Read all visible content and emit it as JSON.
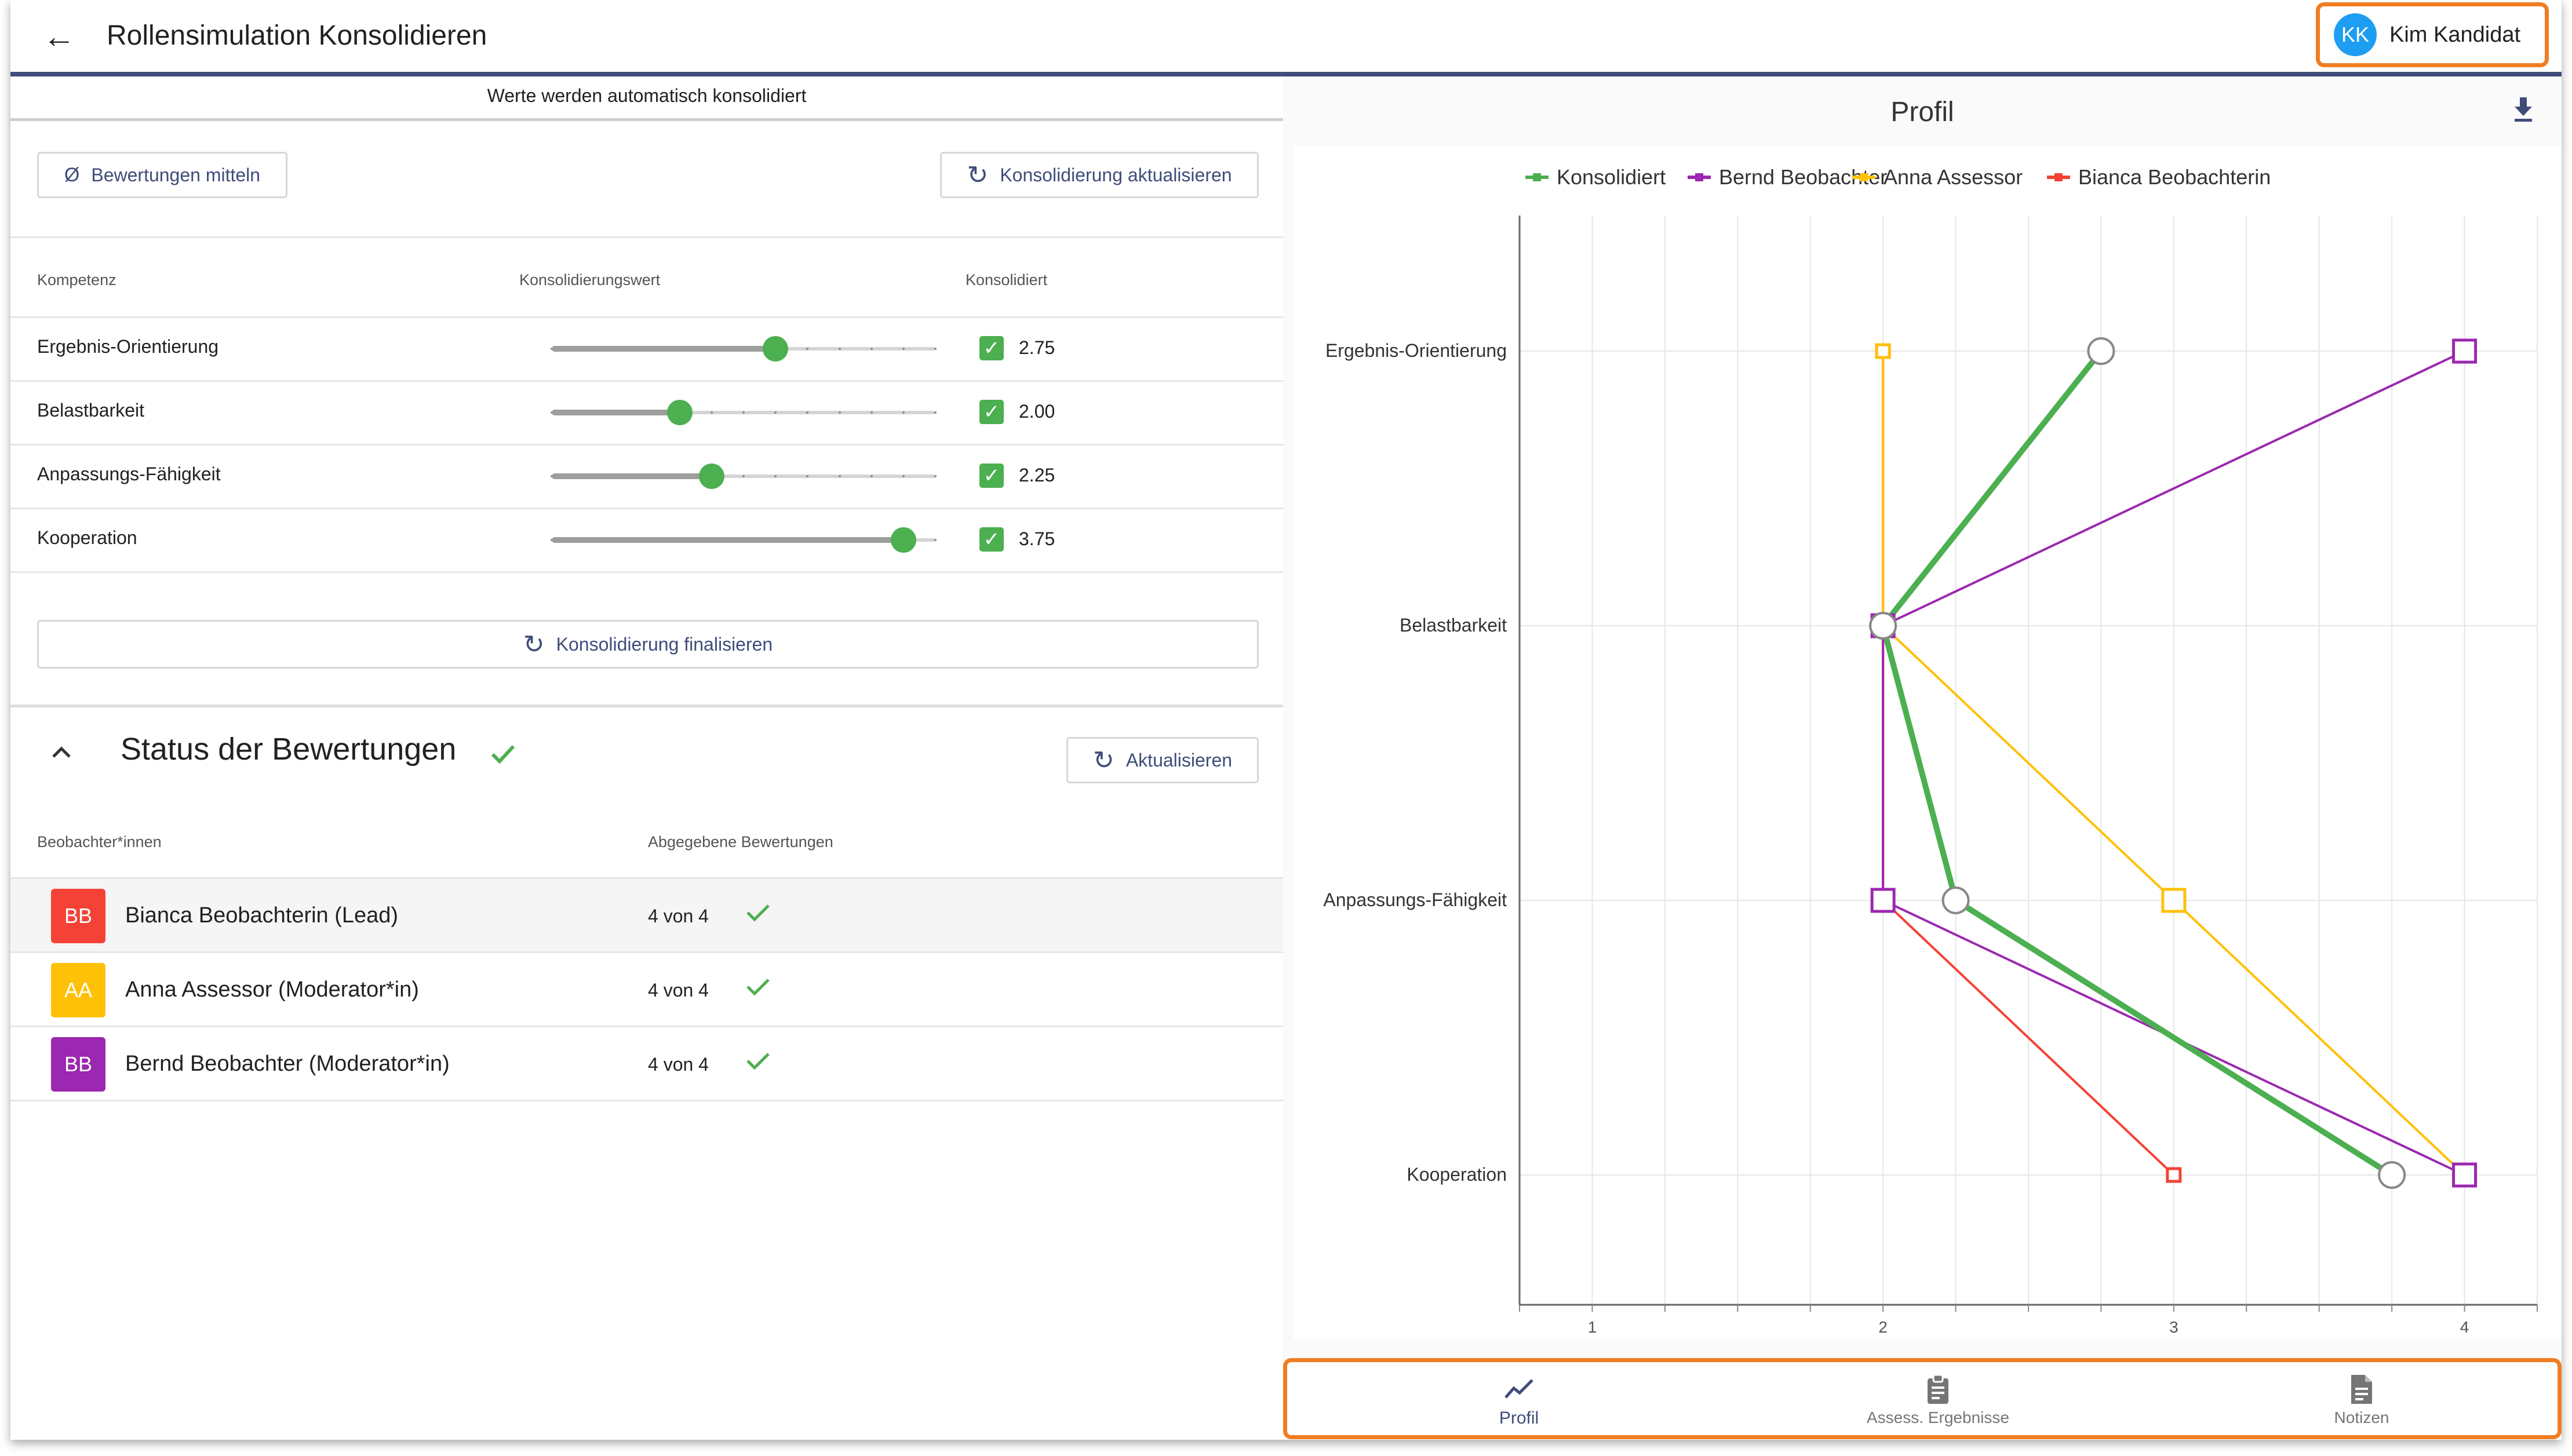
{
  "header": {
    "back_icon": "arrow-left-icon",
    "title": "Rollensimulation Konsolidieren",
    "user": {
      "initials": "KK",
      "name": "Kim Kandidat",
      "avatar_color": "#1e9ef2"
    }
  },
  "consolidation": {
    "auto_note": "Werte werden automatisch konsolidiert",
    "average_button": {
      "icon": "Ø",
      "label": "Bewertungen mitteln"
    },
    "refresh_button": {
      "icon": "refresh-icon",
      "label": "Konsolidierung aktualisieren"
    },
    "columns": {
      "competence": "Kompetenz",
      "value": "Konsolidierungswert",
      "consolidated": "Konsolidiert"
    },
    "slider_range": [
      1,
      4
    ],
    "rows": [
      {
        "label": "Ergebnis-Orientierung",
        "value": 2.75,
        "value_text": "2.75",
        "checked": true
      },
      {
        "label": "Belastbarkeit",
        "value": 2.0,
        "value_text": "2.00",
        "checked": true
      },
      {
        "label": "Anpassungs-Fähigkeit",
        "value": 2.25,
        "value_text": "2.25",
        "checked": true
      },
      {
        "label": "Kooperation",
        "value": 3.75,
        "value_text": "3.75",
        "checked": true
      }
    ],
    "finalize_button": {
      "icon": "refresh-icon",
      "label": "Konsolidierung finalisieren"
    }
  },
  "status": {
    "collapse_icon": "chevron-up-icon",
    "title": "Status der Bewertungen",
    "check_icon": "check-icon",
    "refresh_button": {
      "icon": "refresh-icon",
      "label": "Aktualisieren"
    },
    "columns": {
      "observers": "Beobachter*innen",
      "submitted": "Abgegebene Bewertungen"
    },
    "observers": [
      {
        "initials": "BB",
        "name": "Bianca Beobachterin (Lead)",
        "count": "4 von 4",
        "color": "#f44336"
      },
      {
        "initials": "AA",
        "name": "Anna Assessor (Moderator*in)",
        "count": "4 von 4",
        "color": "#ffc107"
      },
      {
        "initials": "BB",
        "name": "Bernd Beobachter (Moderator*in)",
        "count": "4 von 4",
        "color": "#9c27b0"
      }
    ]
  },
  "chart_panel": {
    "title": "Profil",
    "download_icon": "download-icon"
  },
  "chart_data": {
    "type": "line",
    "title": "Profil",
    "orientation": "horizontal",
    "categories": [
      "Ergebnis-Orientierung",
      "Belastbarkeit",
      "Anpassungs-Fähigkeit",
      "Kooperation"
    ],
    "xlim": [
      0.75,
      4.25
    ],
    "xticks": [
      1,
      2,
      3,
      4
    ],
    "xtick_labels": [
      "1",
      "2",
      "3",
      "4"
    ],
    "grid": true,
    "legend_position": "top",
    "series": [
      {
        "name": "Konsolidiert",
        "color": "#4caf50",
        "marker": "circle",
        "values": [
          2.75,
          2.0,
          2.25,
          3.75
        ]
      },
      {
        "name": "Bernd Beobachter",
        "color": "#9c27b0",
        "marker": "square",
        "values": [
          4,
          2,
          2,
          4
        ]
      },
      {
        "name": "Anna Assessor",
        "color": "#ffc107",
        "marker": "square",
        "values": [
          2,
          2,
          3,
          4
        ]
      },
      {
        "name": "Bianca Beobachterin",
        "color": "#f44336",
        "marker": "square",
        "values": [
          2,
          2,
          2,
          3
        ]
      }
    ]
  },
  "bottom_nav": {
    "items": [
      {
        "label": "Profil",
        "icon": "chart-line-icon",
        "active": true
      },
      {
        "label": "Assess. Ergebnisse",
        "icon": "clipboard-icon",
        "active": false
      },
      {
        "label": "Notizen",
        "icon": "document-icon",
        "active": false
      }
    ],
    "active_color": "#3f4d7a",
    "inactive_color": "#757575"
  }
}
